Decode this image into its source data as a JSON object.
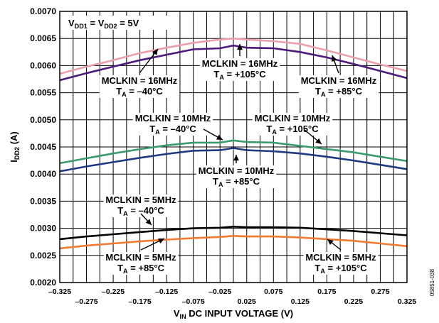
{
  "chart_data": {
    "type": "line",
    "xlabel": "V_IN DC INPUT VOLTAGE (V)",
    "ylabel": "I_DD2 (A)",
    "xlim": [
      -0.325,
      0.325
    ],
    "ylim": [
      0.002,
      0.007
    ],
    "grid": true,
    "x_ticks_bottom": [
      "–0.275",
      "–0.175",
      "–0.075",
      "0.025",
      "0.125",
      "0.225",
      "0.325"
    ],
    "x_ticks_top": [
      "–0.325",
      "–0.225",
      "–0.125",
      "–0.025",
      "0.075",
      "0.175",
      "0.275"
    ],
    "y_ticks": [
      "0.0020",
      "0.0025",
      "0.0030",
      "0.0035",
      "0.0040",
      "0.0045",
      "0.0050",
      "0.0055",
      "0.0060",
      "0.0065",
      "0.0070"
    ],
    "x": [
      -0.325,
      -0.275,
      -0.225,
      -0.175,
      -0.125,
      -0.075,
      -0.025,
      0.0,
      0.025,
      0.075,
      0.125,
      0.175,
      0.225,
      0.275,
      0.325
    ],
    "series": [
      {
        "name": "MCLKIN = 16MHz, T_A = –40°C",
        "color": "#e9a0aa",
        "values": [
          0.00585,
          0.00598,
          0.0061,
          0.00623,
          0.00633,
          0.00642,
          0.00648,
          0.0065,
          0.00648,
          0.00645,
          0.0064,
          0.00628,
          0.00615,
          0.00602,
          0.0059
        ]
      },
      {
        "name": "MCLKIN = 16MHz, T_A = +85°C",
        "color": "#4b1a7a",
        "values": [
          0.00573,
          0.00586,
          0.00598,
          0.0061,
          0.0062,
          0.0063,
          0.00632,
          0.00637,
          0.00633,
          0.00632,
          0.00625,
          0.00615,
          0.00603,
          0.0059,
          0.00577
        ]
      },
      {
        "name": "MCLKIN = 10MHz, T_A = –40°C",
        "color": "#3a9a6a",
        "values": [
          0.0042,
          0.00429,
          0.00438,
          0.00446,
          0.00453,
          0.00458,
          0.00458,
          0.00462,
          0.00459,
          0.00458,
          0.00452,
          0.00446,
          0.0044,
          0.00432,
          0.00424
        ]
      },
      {
        "name": "MCLKIN = 10MHz, T_A = +85°C",
        "color": "#1f3a80",
        "values": [
          0.00405,
          0.00414,
          0.00422,
          0.0043,
          0.00437,
          0.00443,
          0.00444,
          0.00448,
          0.00444,
          0.00442,
          0.00438,
          0.00432,
          0.00425,
          0.00417,
          0.00409
        ]
      },
      {
        "name": "MCLKIN = 5MHz, T_A = –40°C",
        "color": "#000000",
        "values": [
          0.0028,
          0.00285,
          0.00289,
          0.00293,
          0.00297,
          0.003,
          0.00301,
          0.00303,
          0.00302,
          0.00302,
          0.00301,
          0.00298,
          0.00295,
          0.00291,
          0.00287
        ]
      },
      {
        "name": "MCLKIN = 5MHz, T_A = +105°C",
        "color": "#f07a30",
        "values": [
          0.00263,
          0.00268,
          0.00272,
          0.00276,
          0.00279,
          0.00282,
          0.00284,
          0.00286,
          0.00285,
          0.00285,
          0.00283,
          0.0028,
          0.00277,
          0.00272,
          0.00267
        ]
      }
    ],
    "annotations": {
      "supply": [
        "V_DD1 = V_DD2 = 5V"
      ],
      "a1": [
        "MCLKIN = 16MHz",
        "T_A = –40°C"
      ],
      "a2": [
        "MCLKIN = 16MHz",
        "T_A = +105°C"
      ],
      "a3": [
        "MCLKIN = 16MHz",
        "T_A = +85°C"
      ],
      "a4": [
        "MCLKIN = 10MHz",
        "T_A = –40°C"
      ],
      "a5": [
        "MCLKIN = 10MHz",
        "T_A = +105°C"
      ],
      "a6": [
        "MCLKIN = 10MHz",
        "T_A = +85°C"
      ],
      "a7": [
        "MCLKIN = 5MHz",
        "T_A = –40°C"
      ],
      "a8": [
        "MCLKIN = 5MHz",
        "T_A = +85°C"
      ],
      "a9": [
        "MCLKIN = 5MHz",
        "T_A = +105°C"
      ]
    },
    "figure_id": "05851-038"
  }
}
